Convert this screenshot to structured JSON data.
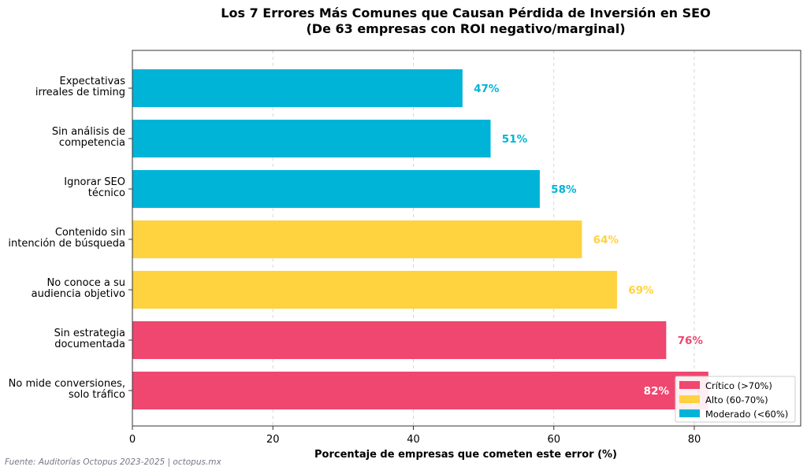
{
  "chart_data": {
    "type": "bar",
    "orientation": "horizontal",
    "title": "Los 7 Errores Más Comunes que Causan Pérdida de Inversión en SEO",
    "subtitle": "(De 63 empresas con ROI negativo/marginal)",
    "xlabel": "Porcentaje de empresas que cometen este error (%)",
    "ylabel": "",
    "xlim": [
      0,
      95
    ],
    "xticks": [
      0,
      20,
      40,
      60,
      80
    ],
    "grid": "vertical dashed",
    "categories": [
      [
        "Expectativas",
        "irreales de timing"
      ],
      [
        "Sin análisis de",
        "competencia"
      ],
      [
        "Ignorar SEO",
        "técnico"
      ],
      [
        "Contenido sin",
        "intención de búsqueda"
      ],
      [
        "No conoce a su",
        "audiencia objetivo"
      ],
      [
        "Sin estrategia",
        "documentada"
      ],
      [
        "No mide conversiones,",
        "solo tráfico"
      ]
    ],
    "values": [
      47,
      51,
      58,
      64,
      69,
      76,
      82
    ],
    "value_labels": [
      "47%",
      "51%",
      "58%",
      "64%",
      "69%",
      "76%",
      "82%"
    ],
    "levels": [
      "moderado",
      "moderado",
      "moderado",
      "alto",
      "alto",
      "critico",
      "critico"
    ],
    "colors": {
      "critico": "#EF476F",
      "alto": "#FFD23F",
      "moderado": "#00B4D8"
    },
    "legend": {
      "placement": "lower-right",
      "entries": [
        {
          "key": "critico",
          "label": "Crítico (>70%)"
        },
        {
          "key": "alto",
          "label": "Alto (60-70%)"
        },
        {
          "key": "moderado",
          "label": "Moderado (<60%)"
        }
      ]
    },
    "source": "Fuente: Auditorías Octopus 2023-2025 | octopus.mx"
  }
}
